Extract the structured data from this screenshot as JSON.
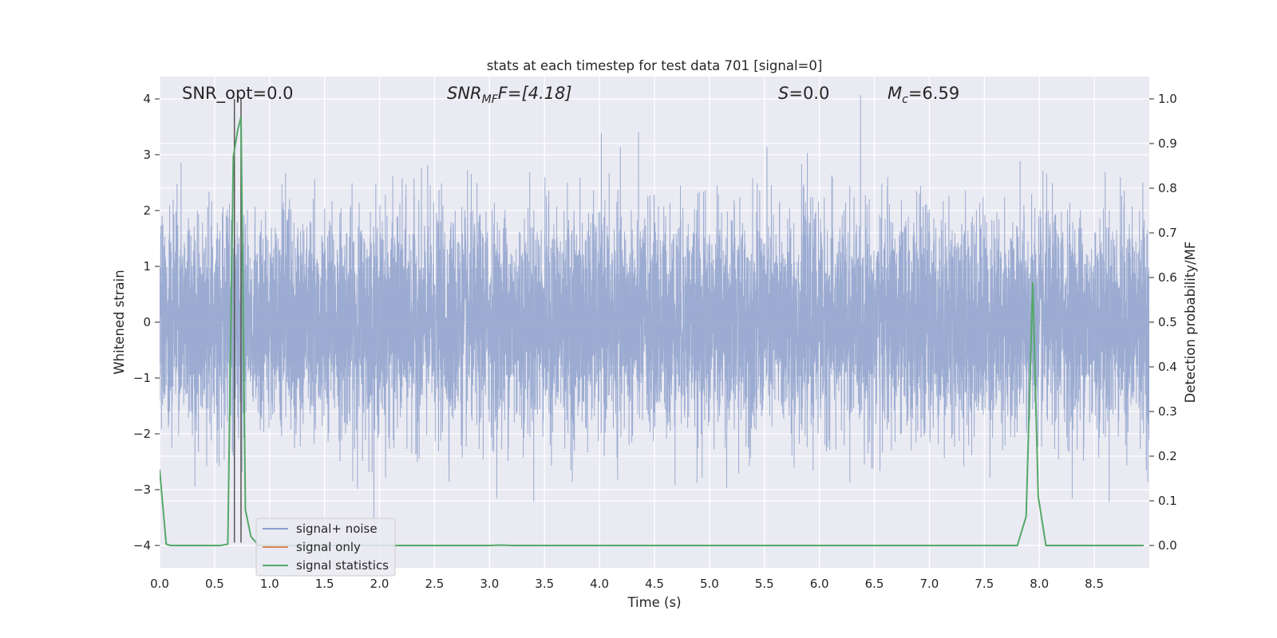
{
  "chart_data": {
    "type": "line",
    "title": "stats at each timestep for test data 701 [signal=0]",
    "xlabel": "Time (s)",
    "ylabel": "Whitened strain",
    "y2label": "Detection probability/MF",
    "xlim": [
      0,
      9.0
    ],
    "ylim": [
      -4.4,
      4.4
    ],
    "y2lim": [
      -0.05,
      1.05
    ],
    "xticks": [
      "0.0",
      "0.5",
      "1.0",
      "1.5",
      "2.0",
      "2.5",
      "3.0",
      "3.5",
      "4.0",
      "4.5",
      "5.0",
      "5.5",
      "6.0",
      "6.5",
      "7.0",
      "7.5",
      "8.0",
      "8.5"
    ],
    "yticks": [
      "−4",
      "−3",
      "−2",
      "−1",
      "0",
      "1",
      "2",
      "3",
      "4"
    ],
    "y2ticks": [
      "0.0",
      "0.1",
      "0.2",
      "0.3",
      "0.4",
      "0.5",
      "0.6",
      "0.7",
      "0.8",
      "0.9",
      "1.0"
    ],
    "grid": true,
    "legend_position": "lower-left",
    "annotations": {
      "snr_opt": "SNR_opt=0.0",
      "snr_mf_prefix": "SNR",
      "snr_mf_sub": "MF",
      "snr_mf_suffix": "F=[4.18]",
      "s_prefix": "S",
      "s_suffix": "=0.0",
      "mc_prefix": "M",
      "mc_sub": "c",
      "mc_suffix": "=6.59"
    },
    "vertical_lines_x": [
      0.68,
      0.74
    ],
    "series": [
      {
        "name": "signal+ noise",
        "color": "#8da0cb",
        "kind": "whitened-noise",
        "duration": 9.0,
        "std": 1.0
      },
      {
        "name": "signal only",
        "color": "#dd8452",
        "x": [],
        "y": []
      },
      {
        "name": "signal statistics",
        "color": "#55a868",
        "axis": "right",
        "x": [
          0.0,
          0.06,
          0.1,
          0.2,
          0.3,
          0.4,
          0.5,
          0.55,
          0.62,
          0.67,
          0.71,
          0.74,
          0.78,
          0.83,
          0.9,
          1.0,
          1.5,
          2.0,
          2.5,
          3.0,
          3.1,
          3.2,
          3.5,
          4.0,
          4.5,
          5.0,
          5.5,
          6.0,
          6.5,
          7.0,
          7.5,
          7.8,
          7.88,
          7.94,
          7.99,
          8.06,
          8.2,
          8.5,
          8.95
        ],
        "y": [
          0.17,
          0.003,
          0.0,
          0.0,
          0.0,
          0.0,
          0.0,
          0.0,
          0.003,
          0.87,
          0.93,
          0.96,
          0.08,
          0.02,
          0.0,
          0.0,
          0.0,
          0.0,
          0.0,
          0.0,
          0.001,
          0.0,
          0.0,
          0.0,
          0.0,
          0.0,
          0.0,
          0.0,
          0.0,
          0.0,
          0.0,
          0.0,
          0.065,
          0.59,
          0.11,
          0.0,
          0.0,
          0.0,
          0.0
        ]
      }
    ]
  },
  "colors": {
    "plot_bg": "#eaeaf2",
    "grid": "#ffffff",
    "text": "#262626",
    "vline": "#555555"
  }
}
